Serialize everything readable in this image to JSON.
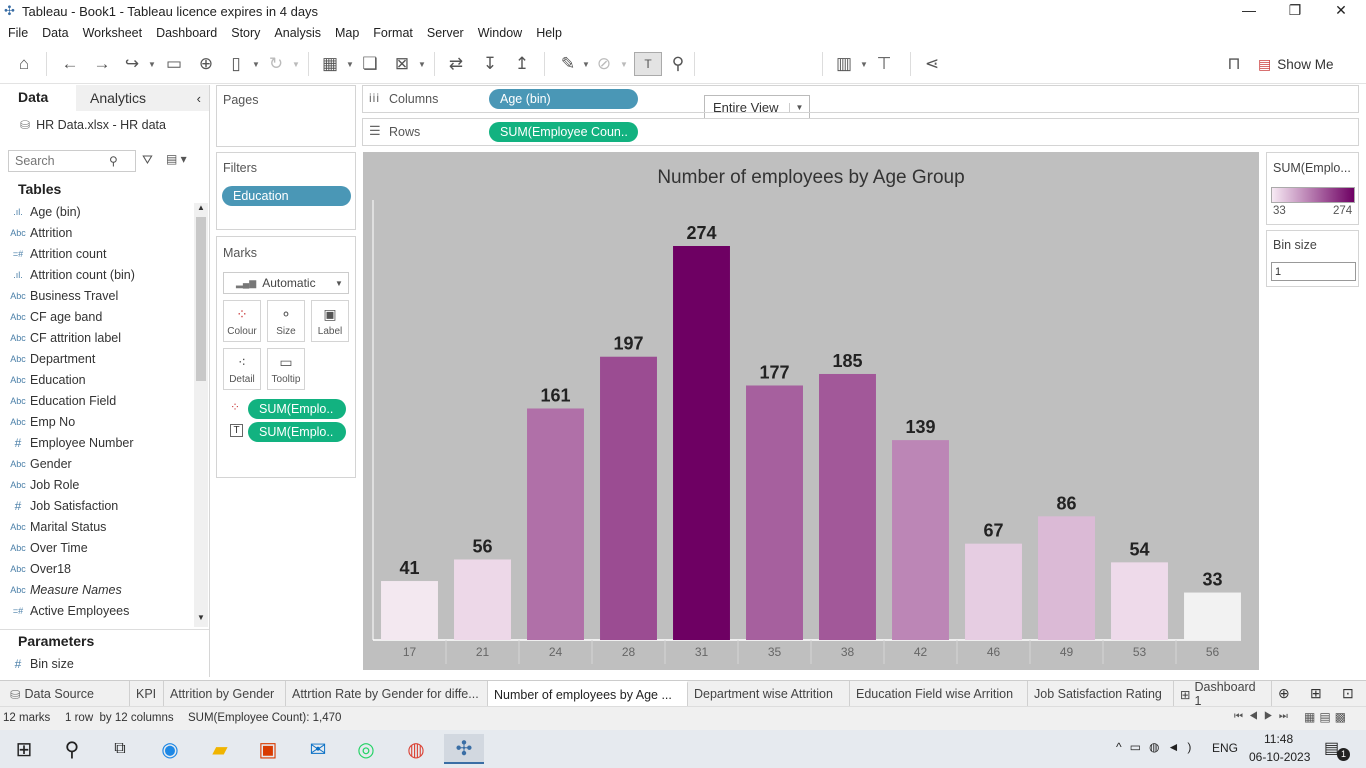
{
  "window": {
    "title": "Tableau - Book1 - Tableau licence expires in 4 days"
  },
  "menu": [
    "File",
    "Data",
    "Worksheet",
    "Dashboard",
    "Story",
    "Analysis",
    "Map",
    "Format",
    "Server",
    "Window",
    "Help"
  ],
  "toolbar": {
    "view_select": "Entire View",
    "show_me": "Show Me"
  },
  "sidebar": {
    "tab_data": "Data",
    "tab_analytics": "Analytics",
    "datasource": "HR Data.xlsx - HR data",
    "search_placeholder": "Search",
    "tables_header": "Tables",
    "fields": [
      {
        "type": "bin",
        "name": "Age (bin)"
      },
      {
        "type": "abc",
        "name": "Attrition"
      },
      {
        "type": "measure",
        "name": "Attrition count"
      },
      {
        "type": "bin",
        "name": "Attrition count (bin)"
      },
      {
        "type": "abc",
        "name": "Business Travel"
      },
      {
        "type": "abc",
        "name": "CF age band"
      },
      {
        "type": "abc",
        "name": "CF attrition label"
      },
      {
        "type": "abc",
        "name": "Department"
      },
      {
        "type": "abc",
        "name": "Education"
      },
      {
        "type": "abc",
        "name": "Education Field"
      },
      {
        "type": "abc",
        "name": "Emp No"
      },
      {
        "type": "num",
        "name": "Employee Number"
      },
      {
        "type": "abc",
        "name": "Gender"
      },
      {
        "type": "abc",
        "name": "Job Role"
      },
      {
        "type": "num",
        "name": "Job Satisfaction"
      },
      {
        "type": "abc",
        "name": "Marital Status"
      },
      {
        "type": "abc",
        "name": "Over Time"
      },
      {
        "type": "abc",
        "name": "Over18"
      },
      {
        "type": "abc",
        "name": "Measure Names"
      },
      {
        "type": "measure",
        "name": "Active Employees"
      }
    ],
    "parameters_header": "Parameters",
    "parameters": [
      {
        "type": "num",
        "name": "Bin size"
      }
    ]
  },
  "shelves": {
    "pages": "Pages",
    "filters": "Filters",
    "filter_pill": "Education",
    "marks": "Marks",
    "mark_type": "Automatic",
    "mark_buttons": [
      "Colour",
      "Size",
      "Label",
      "Detail",
      "Tooltip"
    ],
    "mark_pills": [
      "SUM(Emplo..",
      "SUM(Emplo.."
    ],
    "columns_label": "Columns",
    "columns_pill": "Age (bin)",
    "rows_label": "Rows",
    "rows_pill": "SUM(Employee Coun.."
  },
  "legend": {
    "title": "SUM(Emplo...",
    "min": "33",
    "max": "274",
    "bin_title": "Bin size",
    "bin_value": "1"
  },
  "chart_data": {
    "type": "bar",
    "title": "Number of employees by Age Group",
    "categories": [
      "17",
      "21",
      "24",
      "28",
      "31",
      "35",
      "38",
      "42",
      "46",
      "49",
      "53",
      "56"
    ],
    "values": [
      41,
      56,
      161,
      197,
      274,
      177,
      185,
      139,
      67,
      86,
      54,
      33
    ],
    "color_range": [
      "#f2f2f2",
      "#6e0063"
    ],
    "ylim": [
      0,
      300
    ],
    "grid": false
  },
  "tabs": [
    "Data Source",
    "KPI",
    "Attrition by Gender",
    "Attrtion Rate by Gender for diffe...",
    "Number of employees by Age ...",
    "Department wise Attrition",
    "Education Field wise Arrition",
    "Job Satisfaction Rating",
    "Dashboard 1"
  ],
  "status": {
    "marks": "12 marks",
    "dims": "1 row  by 12 columns",
    "sum": "SUM(Employee Count): 1,470"
  },
  "taskbar": {
    "lang": "ENG",
    "time": "11:48",
    "date": "06-10-2023",
    "notif": "1"
  }
}
